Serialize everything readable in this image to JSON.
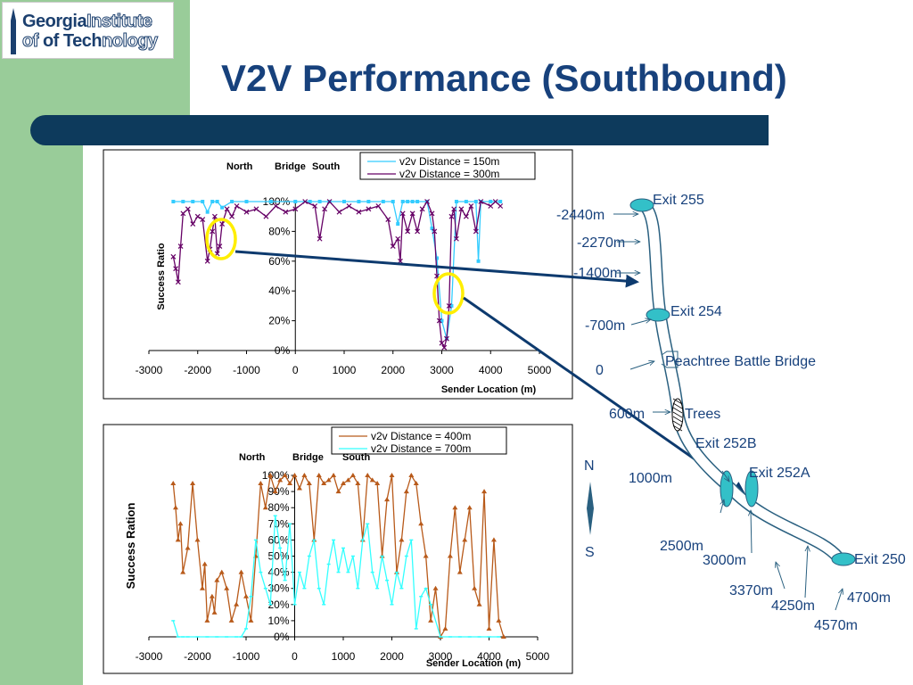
{
  "header": {
    "logo_line1": "Georgia",
    "logo_line1b": "Institute",
    "logo_line2": "of Tech",
    "logo_line2b": "nology",
    "title": "V2V Performance (Southbound)"
  },
  "chart_data": [
    {
      "type": "line",
      "xlabel": "Sender Location (m)",
      "ylabel": "Success Ratio",
      "xlim": [
        -3000,
        5000
      ],
      "ylim": [
        0,
        100
      ],
      "x_ticks": [
        "-3000",
        "-2000",
        "-1000",
        "0",
        "1000",
        "2000",
        "3000",
        "4000",
        "5000"
      ],
      "y_ticks": [
        "0%",
        "20%",
        "40%",
        "60%",
        "80%",
        "100%"
      ],
      "annotation": {
        "north": "North",
        "bridge": "Bridge",
        "south": "South"
      },
      "legend_position": "top-right",
      "series": [
        {
          "name": "v2v Distance = 150m",
          "color": "#33ccff",
          "marker": "square",
          "x": [
            -2500,
            -2300,
            -2100,
            -1900,
            -1800,
            -1700,
            -1600,
            -1500,
            -1300,
            -1000,
            -500,
            0,
            300,
            500,
            700,
            1000,
            1300,
            1500,
            1800,
            2000,
            2100,
            2200,
            2300,
            2400,
            2500,
            2700,
            2800,
            2900,
            3000,
            3100,
            3200,
            3300,
            3500,
            3700,
            3750,
            3800,
            4000,
            4200
          ],
          "y": [
            100,
            100,
            100,
            100,
            93,
            100,
            100,
            96,
            100,
            100,
            100,
            100,
            100,
            100,
            100,
            100,
            100,
            100,
            100,
            100,
            85,
            100,
            100,
            100,
            100,
            100,
            82,
            62,
            20,
            8,
            30,
            100,
            100,
            100,
            60,
            100,
            100,
            100
          ]
        },
        {
          "name": "v2v Distance = 300m",
          "color": "#660066",
          "marker": "x",
          "x": [
            -2500,
            -2450,
            -2400,
            -2350,
            -2300,
            -2200,
            -2100,
            -2000,
            -1900,
            -1800,
            -1750,
            -1700,
            -1650,
            -1600,
            -1550,
            -1500,
            -1400,
            -1300,
            -1200,
            -1000,
            -800,
            -600,
            -400,
            -200,
            0,
            200,
            400,
            500,
            600,
            700,
            900,
            1100,
            1300,
            1500,
            1700,
            1900,
            2000,
            2100,
            2150,
            2200,
            2300,
            2400,
            2500,
            2600,
            2700,
            2800,
            2850,
            2900,
            2950,
            3000,
            3050,
            3100,
            3150,
            3200,
            3250,
            3300,
            3400,
            3500,
            3600,
            3700,
            3800,
            4000,
            4100,
            4200
          ],
          "y": [
            63,
            55,
            46,
            70,
            92,
            95,
            85,
            90,
            88,
            60,
            68,
            80,
            90,
            65,
            70,
            85,
            95,
            90,
            97,
            93,
            95,
            90,
            97,
            93,
            95,
            100,
            97,
            75,
            95,
            100,
            93,
            97,
            93,
            95,
            97,
            88,
            70,
            75,
            60,
            92,
            80,
            92,
            80,
            95,
            100,
            92,
            80,
            50,
            20,
            5,
            2,
            8,
            30,
            90,
            95,
            75,
            95,
            90,
            97,
            80,
            100,
            97,
            100,
            97
          ]
        }
      ]
    },
    {
      "type": "line",
      "xlabel": "Sender Location (m)",
      "ylabel": "Success Ration",
      "xlim": [
        -3000,
        5000
      ],
      "ylim": [
        0,
        100
      ],
      "x_ticks": [
        "-3000",
        "-2000",
        "-1000",
        "0",
        "1000",
        "2000",
        "3000",
        "4000",
        "5000"
      ],
      "y_ticks": [
        "0%",
        "10%",
        "20%",
        "30%",
        "40%",
        "50%",
        "60%",
        "70%",
        "80%",
        "90%",
        "100%"
      ],
      "annotation": {
        "north": "North",
        "bridge": "Bridge",
        "south": "South"
      },
      "legend_position": "top-right",
      "series": [
        {
          "name": "v2v Distance = 400m",
          "color": "#b85a1a",
          "marker": "triangle",
          "x": [
            -2500,
            -2450,
            -2400,
            -2350,
            -2300,
            -2200,
            -2100,
            -2000,
            -1900,
            -1850,
            -1800,
            -1700,
            -1650,
            -1600,
            -1500,
            -1400,
            -1300,
            -1200,
            -1100,
            -1000,
            -900,
            -800,
            -700,
            -600,
            -500,
            -400,
            -300,
            -200,
            -100,
            0,
            100,
            200,
            300,
            400,
            500,
            600,
            700,
            800,
            900,
            1000,
            1100,
            1200,
            1300,
            1400,
            1500,
            1600,
            1700,
            1800,
            1900,
            2000,
            2100,
            2200,
            2300,
            2400,
            2500,
            2600,
            2700,
            2800,
            2900,
            3000,
            3100,
            3200,
            3300,
            3400,
            3500,
            3600,
            3700,
            3800,
            3900,
            4000,
            4100,
            4200,
            4300
          ],
          "y": [
            95,
            80,
            60,
            70,
            40,
            55,
            95,
            60,
            30,
            45,
            10,
            25,
            15,
            35,
            40,
            30,
            10,
            20,
            40,
            25,
            10,
            50,
            95,
            80,
            100,
            90,
            97,
            100,
            95,
            100,
            92,
            100,
            95,
            60,
            100,
            95,
            97,
            100,
            90,
            95,
            97,
            100,
            95,
            60,
            100,
            97,
            95,
            50,
            85,
            100,
            40,
            60,
            90,
            100,
            95,
            70,
            50,
            10,
            30,
            0,
            5,
            50,
            80,
            40,
            60,
            80,
            30,
            20,
            90,
            5,
            60,
            10,
            0
          ]
        },
        {
          "name": "v2v Distance = 700m",
          "color": "#33ffff",
          "marker": "dash",
          "x": [
            -2500,
            -2400,
            -2300,
            -2200,
            -2000,
            -1800,
            -1600,
            -1400,
            -1200,
            -1100,
            -1000,
            -900,
            -800,
            -700,
            -600,
            -500,
            -400,
            -300,
            -200,
            -100,
            0,
            100,
            200,
            300,
            400,
            500,
            600,
            700,
            800,
            900,
            1000,
            1100,
            1200,
            1300,
            1400,
            1500,
            1600,
            1700,
            1800,
            1900,
            2000,
            2100,
            2200,
            2300,
            2400,
            2500,
            2600,
            2700,
            2800,
            3000,
            3200,
            3400,
            3600,
            3800,
            4000,
            4200
          ],
          "y": [
            10,
            0,
            0,
            0,
            0,
            0,
            0,
            0,
            0,
            0,
            5,
            25,
            60,
            40,
            30,
            20,
            75,
            55,
            35,
            70,
            20,
            40,
            30,
            50,
            60,
            30,
            20,
            45,
            60,
            40,
            55,
            40,
            50,
            30,
            60,
            70,
            40,
            30,
            50,
            35,
            20,
            40,
            30,
            50,
            60,
            5,
            25,
            30,
            20,
            0,
            0,
            0,
            0,
            0,
            0,
            0
          ]
        }
      ]
    }
  ],
  "map": {
    "north": "N",
    "south": "S",
    "exits": [
      "Exit 255",
      "Exit 254",
      "Exit 252B",
      "Exit 252A",
      "Exit 250"
    ],
    "labels": [
      "-2440m",
      "-2270m",
      "-1400m",
      "-700m",
      "0",
      "Peachtree Battle Bridge",
      "600m",
      "Trees",
      "1000m",
      "2500m",
      "3000m",
      "3370m",
      "4250m",
      "4570m",
      "4700m"
    ]
  }
}
